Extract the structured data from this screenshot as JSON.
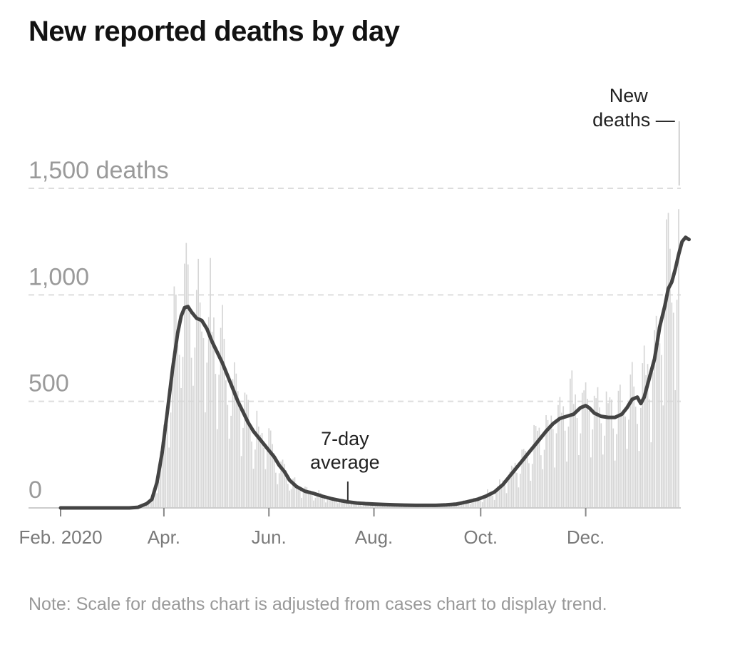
{
  "title": "New reported deaths by day",
  "note": "Note: Scale for deaths chart is adjusted from cases chart to display trend.",
  "colors": {
    "bar": "#d6d6d6",
    "line": "#444444",
    "grid": "#dddddd",
    "axis": "#cccccc"
  },
  "chart_data": {
    "type": "bar",
    "title": "New reported deaths by day",
    "ylim": [
      0,
      1650
    ],
    "y_ticks": [
      {
        "value": 0,
        "label": "0"
      },
      {
        "value": 500,
        "label": "500"
      },
      {
        "value": 1000,
        "label": "1,000"
      },
      {
        "value": 1500,
        "label": "1,500 deaths"
      }
    ],
    "x_ticks": [
      {
        "day": 0,
        "label": "Feb. 2020"
      },
      {
        "day": 60,
        "label": "Apr."
      },
      {
        "day": 121,
        "label": "Jun."
      },
      {
        "day": 182,
        "label": "Aug."
      },
      {
        "day": 244,
        "label": "Oct."
      },
      {
        "day": 305,
        "label": "Dec."
      }
    ],
    "x_range": [
      0,
      359
    ],
    "annotations": [
      {
        "text": [
          "New",
          "deaths —"
        ],
        "day": 356
      },
      {
        "text": [
          "7-day",
          "average"
        ],
        "day": 166
      }
    ],
    "series": [
      {
        "name": "New deaths",
        "kind": "bar"
      },
      {
        "name": "7-day average",
        "kind": "line",
        "points": [
          [
            0,
            0
          ],
          [
            40,
            0
          ],
          [
            45,
            3
          ],
          [
            50,
            20
          ],
          [
            53,
            40
          ],
          [
            56,
            120
          ],
          [
            59,
            260
          ],
          [
            62,
            450
          ],
          [
            65,
            650
          ],
          [
            68,
            820
          ],
          [
            70,
            900
          ],
          [
            72,
            940
          ],
          [
            74,
            945
          ],
          [
            76,
            920
          ],
          [
            79,
            890
          ],
          [
            82,
            880
          ],
          [
            85,
            840
          ],
          [
            88,
            780
          ],
          [
            91,
            730
          ],
          [
            94,
            680
          ],
          [
            97,
            620
          ],
          [
            100,
            560
          ],
          [
            103,
            500
          ],
          [
            106,
            450
          ],
          [
            109,
            400
          ],
          [
            112,
            360
          ],
          [
            115,
            330
          ],
          [
            118,
            300
          ],
          [
            121,
            270
          ],
          [
            124,
            240
          ],
          [
            127,
            200
          ],
          [
            130,
            170
          ],
          [
            133,
            130
          ],
          [
            137,
            100
          ],
          [
            142,
            78
          ],
          [
            147,
            68
          ],
          [
            152,
            55
          ],
          [
            157,
            44
          ],
          [
            162,
            35
          ],
          [
            167,
            28
          ],
          [
            172,
            23
          ],
          [
            177,
            20
          ],
          [
            182,
            18
          ],
          [
            188,
            16
          ],
          [
            194,
            14
          ],
          [
            200,
            13
          ],
          [
            206,
            12
          ],
          [
            212,
            12
          ],
          [
            218,
            12
          ],
          [
            224,
            14
          ],
          [
            230,
            18
          ],
          [
            236,
            28
          ],
          [
            242,
            40
          ],
          [
            247,
            55
          ],
          [
            252,
            75
          ],
          [
            257,
            110
          ],
          [
            262,
            160
          ],
          [
            267,
            210
          ],
          [
            272,
            260
          ],
          [
            277,
            310
          ],
          [
            282,
            360
          ],
          [
            286,
            395
          ],
          [
            290,
            420
          ],
          [
            294,
            430
          ],
          [
            298,
            440
          ],
          [
            302,
            470
          ],
          [
            305,
            480
          ],
          [
            307,
            470
          ],
          [
            310,
            445
          ],
          [
            314,
            430
          ],
          [
            318,
            425
          ],
          [
            322,
            425
          ],
          [
            326,
            440
          ],
          [
            329,
            470
          ],
          [
            332,
            510
          ],
          [
            335,
            520
          ],
          [
            337,
            490
          ],
          [
            339,
            520
          ],
          [
            342,
            610
          ],
          [
            345,
            700
          ],
          [
            348,
            850
          ],
          [
            351,
            950
          ],
          [
            353,
            1030
          ],
          [
            355,
            1060
          ],
          [
            357,
            1120
          ],
          [
            359,
            1190
          ],
          [
            361,
            1250
          ],
          [
            363,
            1270
          ],
          [
            365,
            1260
          ]
        ]
      }
    ]
  }
}
